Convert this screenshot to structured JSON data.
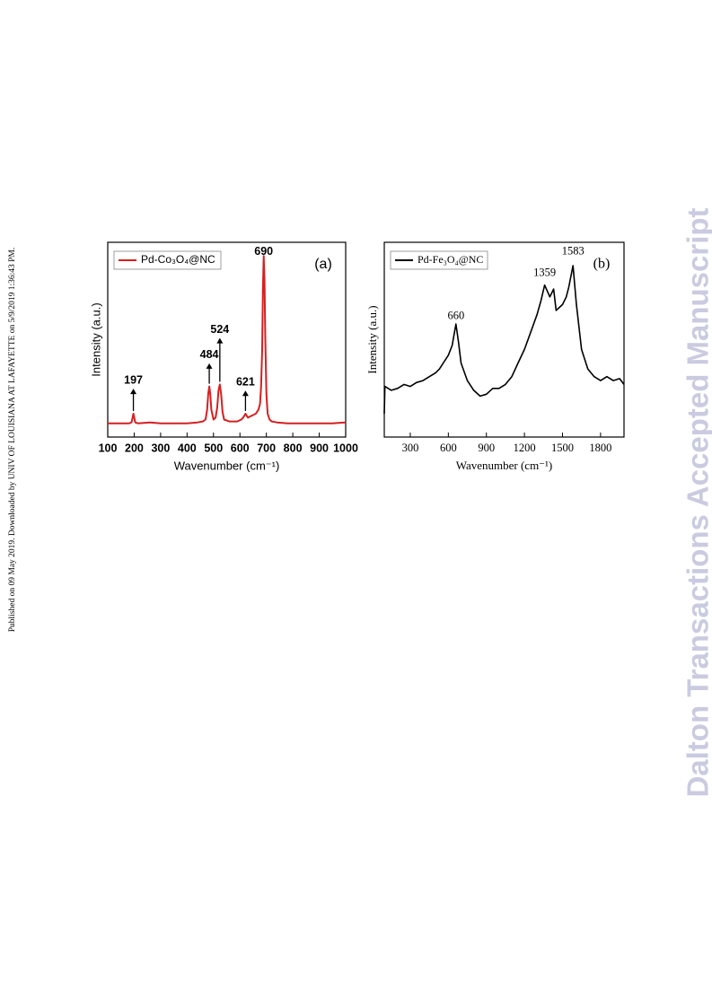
{
  "sidebar": "Published on 09 May 2019. Downloaded by UNIV OF LOUISIANA AT LAFAYETTE on 5/9/2019 1:36:43 PM.",
  "watermark": "Dalton Transactions Accepted Manuscript",
  "chart_data": [
    {
      "type": "line",
      "panel_label": "(a)",
      "x_label": "Wavenumber (cm⁻¹)",
      "y_label": "Intensity (a.u.)",
      "xlim": [
        100,
        1000
      ],
      "xticks": [
        100,
        200,
        300,
        400,
        500,
        600,
        700,
        800,
        900,
        1000
      ],
      "ylim": [
        0,
        100
      ],
      "x": [
        100,
        150,
        180,
        190,
        197,
        204,
        215,
        260,
        300,
        350,
        400,
        440,
        460,
        470,
        476,
        480,
        484,
        488,
        492,
        500,
        508,
        514,
        519,
        524,
        529,
        534,
        540,
        560,
        590,
        605,
        612,
        617,
        621,
        625,
        630,
        645,
        660,
        670,
        676,
        680,
        684,
        687,
        690,
        693,
        696,
        700,
        705,
        712,
        720,
        740,
        780,
        850,
        900,
        950,
        1000
      ],
      "series": [
        {
          "name": "Pd-Co₃O₄@NC",
          "color": "#d42020",
          "values": [
            7,
            7,
            7,
            7.5,
            12,
            7.5,
            7,
            7.5,
            7,
            7,
            7,
            7.5,
            8,
            9,
            14,
            22,
            26,
            22,
            14,
            9,
            10,
            15,
            24,
            27,
            22,
            13,
            9,
            8,
            8,
            9,
            10,
            11,
            12,
            11,
            10,
            11,
            12,
            14,
            17,
            26,
            45,
            75,
            93,
            80,
            50,
            22,
            12,
            9,
            8,
            7.5,
            7,
            7,
            7,
            7,
            7.5
          ]
        }
      ],
      "annotations": [
        {
          "x": 197,
          "y": 29,
          "arrow": true
        },
        {
          "x": 484,
          "y": 42,
          "arrow": true
        },
        {
          "x": 524,
          "y": 55,
          "arrow": true
        },
        {
          "x": 621,
          "y": 28,
          "arrow": true
        },
        {
          "x": 690,
          "y": 95,
          "arrow": false
        }
      ],
      "legend": "upper left"
    },
    {
      "type": "line",
      "panel_label": "(b)",
      "x_label": "Wavenumber (cm⁻¹)",
      "y_label": "Intensity (a.u.)",
      "xlim": [
        95,
        1985
      ],
      "xticks": [
        300,
        600,
        900,
        1200,
        1500,
        1800
      ],
      "ylim": [
        0,
        100
      ],
      "x": [
        95,
        100,
        150,
        200,
        250,
        300,
        350,
        400,
        450,
        500,
        530,
        560,
        600,
        630,
        660,
        680,
        700,
        750,
        800,
        850,
        900,
        950,
        1000,
        1050,
        1100,
        1150,
        1200,
        1250,
        1300,
        1330,
        1359,
        1400,
        1430,
        1450,
        1500,
        1530,
        1550,
        1583,
        1610,
        1650,
        1700,
        1750,
        1800,
        1850,
        1900,
        1950,
        1985
      ],
      "series": [
        {
          "name": "Pd-Fe₃O₄@NC",
          "color": "#000000",
          "values": [
            12,
            26,
            24,
            25,
            27,
            26,
            28,
            29,
            31,
            33,
            35,
            38,
            42,
            47,
            58,
            49,
            38,
            29,
            24,
            21,
            22,
            25,
            25,
            27,
            31,
            38,
            45,
            54,
            63,
            70,
            78,
            72,
            76,
            65,
            68,
            72,
            77,
            88,
            68,
            45,
            35,
            31,
            29,
            31,
            29,
            30,
            27
          ]
        }
      ],
      "annotations": [
        {
          "x": 660,
          "y": 62,
          "arrow": false
        },
        {
          "x": 1359,
          "y": 84,
          "arrow": false
        },
        {
          "x": 1583,
          "y": 95,
          "arrow": false
        }
      ],
      "legend": "upper left"
    }
  ]
}
